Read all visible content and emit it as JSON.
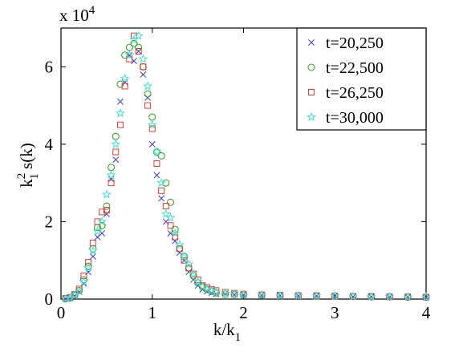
{
  "chart_data": {
    "type": "scatter",
    "title": "",
    "xlabel": "k/k",
    "xlabel_sub": "1",
    "ylabel_k": "k",
    "ylabel_sup": "2",
    "ylabel_sub": "1",
    "ylabel_rest": " s(k)",
    "y_multiplier": "x 10",
    "y_multiplier_exp": "4",
    "xlim": [
      0,
      4
    ],
    "ylim": [
      0,
      70000
    ],
    "x_ticks": [
      0,
      1,
      2,
      3,
      4
    ],
    "x_tick_labels": [
      "0",
      "1",
      "2",
      "3",
      "4"
    ],
    "y_ticks": [
      0,
      20000,
      40000,
      60000
    ],
    "y_tick_labels": [
      "0",
      "2",
      "4",
      "6"
    ],
    "grid": false,
    "legend_position": "top-right",
    "series": [
      {
        "name": "t=20,250",
        "marker": "x",
        "color": "#3a3adf",
        "x": [
          0.05,
          0.1,
          0.15,
          0.2,
          0.25,
          0.3,
          0.35,
          0.4,
          0.45,
          0.5,
          0.55,
          0.6,
          0.65,
          0.7,
          0.75,
          0.8,
          0.85,
          0.9,
          0.95,
          1.0,
          1.05,
          1.1,
          1.15,
          1.2,
          1.25,
          1.3,
          1.35,
          1.4,
          1.45,
          1.5,
          1.55,
          1.6,
          1.65,
          1.7,
          1.8,
          1.9,
          2.0,
          2.2,
          2.4,
          2.6,
          2.8,
          3.0,
          3.2,
          3.4,
          3.6,
          3.8,
          4.0
        ],
        "y": [
          100,
          200,
          800,
          1800,
          4000,
          7000,
          11000,
          16000,
          17000,
          22000,
          31000,
          36000,
          51000,
          56000,
          63000,
          61500,
          64000,
          58000,
          52000,
          40000,
          32000,
          26000,
          20000,
          17000,
          15000,
          12000,
          10000,
          7000,
          5000,
          3500,
          2500,
          2000,
          1600,
          1300,
          1200,
          1100,
          1000,
          900,
          900,
          800,
          800,
          700,
          600,
          600,
          500,
          500,
          400
        ]
      },
      {
        "name": "t=22,500",
        "marker": "o",
        "color": "#2e9a1e",
        "x": [
          0.05,
          0.1,
          0.15,
          0.2,
          0.25,
          0.3,
          0.35,
          0.4,
          0.45,
          0.5,
          0.55,
          0.6,
          0.65,
          0.7,
          0.75,
          0.8,
          0.85,
          0.9,
          0.95,
          1.0,
          1.05,
          1.1,
          1.15,
          1.2,
          1.25,
          1.3,
          1.35,
          1.4,
          1.45,
          1.5,
          1.55,
          1.6,
          1.65,
          1.7,
          1.8,
          1.9,
          2.0,
          2.2,
          2.4,
          2.6,
          2.8,
          3.0,
          3.2,
          3.4,
          3.6,
          3.8,
          4.0
        ],
        "y": [
          100,
          300,
          1000,
          2200,
          5000,
          8500,
          13000,
          18500,
          19000,
          24000,
          34000,
          42000,
          55500,
          63000,
          65000,
          66000,
          65000,
          60000,
          53000,
          47000,
          38000,
          37000,
          30000,
          25000,
          18000,
          13000,
          11000,
          8000,
          6000,
          4200,
          3200,
          2500,
          2000,
          1600,
          1300,
          1200,
          1100,
          1000,
          900,
          900,
          800,
          800,
          700,
          600,
          600,
          500,
          500
        ]
      },
      {
        "name": "t=26,250",
        "marker": "s",
        "color": "#e03c3c",
        "x": [
          0.05,
          0.1,
          0.15,
          0.2,
          0.25,
          0.3,
          0.35,
          0.4,
          0.45,
          0.5,
          0.55,
          0.6,
          0.65,
          0.7,
          0.75,
          0.8,
          0.85,
          0.9,
          0.95,
          1.0,
          1.05,
          1.1,
          1.15,
          1.2,
          1.25,
          1.3,
          1.35,
          1.4,
          1.45,
          1.5,
          1.55,
          1.6,
          1.65,
          1.7,
          1.8,
          1.9,
          2.0,
          2.2,
          2.4,
          2.6,
          2.8,
          3.0,
          3.2,
          3.4,
          3.6,
          3.8,
          4.0
        ],
        "y": [
          200,
          400,
          1200,
          2600,
          6000,
          9500,
          14500,
          20000,
          22500,
          23000,
          30000,
          38000,
          45000,
          55000,
          62000,
          68000,
          64000,
          60000,
          50000,
          44000,
          35000,
          28000,
          24000,
          19000,
          16000,
          13000,
          10000,
          8000,
          6500,
          5000,
          3500,
          3000,
          2500,
          2200,
          1800,
          1500,
          1300,
          1100,
          1000,
          900,
          900,
          800,
          700,
          700,
          600,
          600,
          500
        ]
      },
      {
        "name": "t=30,000",
        "marker": "*",
        "color": "#44e0c8",
        "x": [
          0.05,
          0.1,
          0.15,
          0.2,
          0.25,
          0.3,
          0.35,
          0.4,
          0.45,
          0.5,
          0.55,
          0.6,
          0.65,
          0.7,
          0.75,
          0.8,
          0.85,
          0.9,
          0.95,
          1.0,
          1.05,
          1.1,
          1.15,
          1.2,
          1.25,
          1.3,
          1.35,
          1.4,
          1.45,
          1.5,
          1.55,
          1.6,
          1.65,
          1.7,
          1.8,
          1.9,
          2.0,
          2.2,
          2.4,
          2.6,
          2.8,
          3.0,
          3.2,
          3.4,
          3.6,
          3.8,
          4.0
        ],
        "y": [
          100,
          300,
          900,
          2000,
          4500,
          8000,
          12500,
          17500,
          20000,
          27000,
          32000,
          40000,
          48000,
          57000,
          63000,
          67000,
          68000,
          62000,
          55000,
          45000,
          38000,
          30000,
          22000,
          21000,
          17000,
          14000,
          11000,
          9000,
          6500,
          4500,
          3200,
          2600,
          2200,
          1800,
          1500,
          1300,
          1100,
          1000,
          900,
          900,
          800,
          800,
          700,
          600,
          600,
          500,
          500
        ]
      }
    ]
  }
}
